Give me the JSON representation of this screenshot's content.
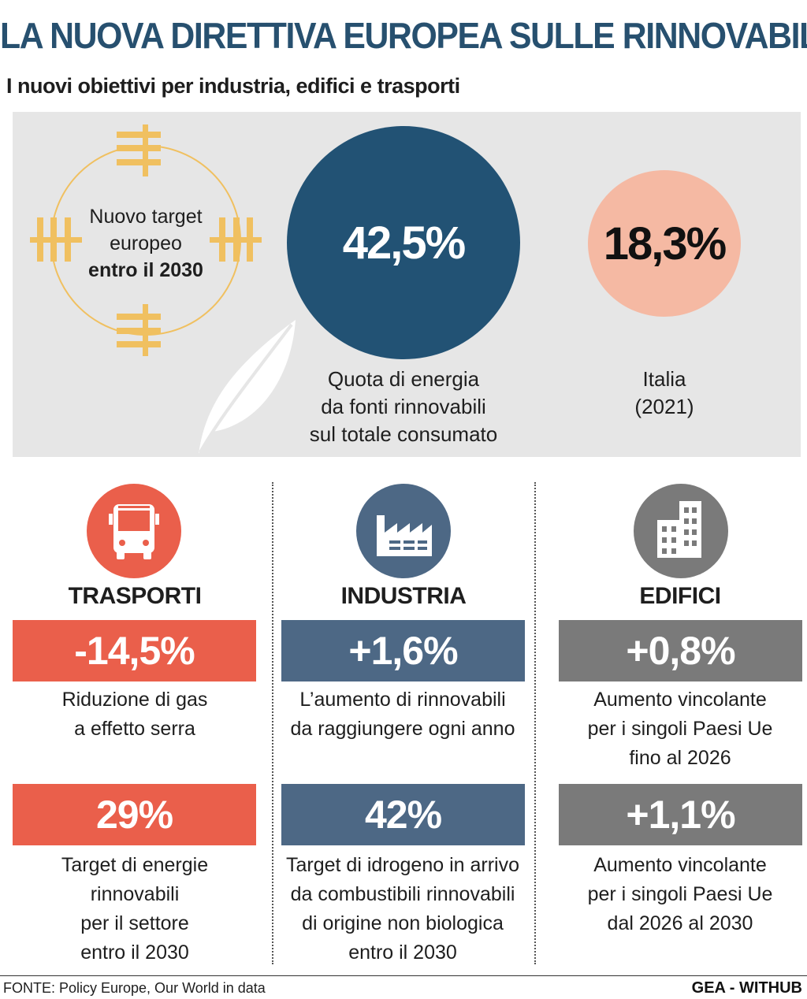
{
  "header": {
    "title": "LA NUOVA DIRETTIVA EUROPEA SULLE RINNOVABILI",
    "subtitle": "I nuovi obiettivi per industria, edifici e trasporti"
  },
  "hero": {
    "target_line1": "Nuovo target",
    "target_line2": "europeo",
    "target_line3": "entro il 2030",
    "eu_value": "42,5%",
    "eu_caption": [
      "Quota di energia",
      "da fonti rinnovabili",
      "sul totale consumato"
    ],
    "italy_value": "18,3%",
    "italy_caption": [
      "Italia",
      "(2021)"
    ],
    "colors": {
      "eu": "#225274",
      "italy": "#f5b9a3",
      "ring": "#f0c060",
      "panel": "#e6e6e6"
    }
  },
  "sectors": [
    {
      "name": "TRASPORTI",
      "icon": "bus-icon",
      "color": "#ea5f4b",
      "items": [
        {
          "value": "-14,5%",
          "desc": [
            "Riduzione di gas",
            "a effetto serra"
          ]
        },
        {
          "value": "29%",
          "desc": [
            "Target di energie",
            "rinnovabili",
            "per il settore",
            "entro il 2030"
          ]
        }
      ]
    },
    {
      "name": "INDUSTRIA",
      "icon": "factory-icon",
      "color": "#4d6885",
      "items": [
        {
          "value": "+1,6%",
          "desc": [
            "L’aumento di rinnovabili",
            "da raggiungere ogni anno"
          ]
        },
        {
          "value": "42%",
          "desc": [
            "Target di idrogeno in arrivo",
            "da combustibili rinnovabili",
            "di origine non biologica",
            "entro il 2030"
          ]
        }
      ]
    },
    {
      "name": "EDIFICI",
      "icon": "building-icon",
      "color": "#7a7a7a",
      "items": [
        {
          "value": "+0,8%",
          "desc": [
            "Aumento vincolante",
            "per i singoli Paesi Ue",
            "fino al 2026"
          ]
        },
        {
          "value": "+1,1%",
          "desc": [
            "Aumento vincolante",
            "per i singoli Paesi Ue",
            "dal 2026 al 2030"
          ]
        }
      ]
    }
  ],
  "footer": {
    "source": "FONTE: Policy Europe, Our World in data",
    "brand": "GEA - WITHUB"
  }
}
